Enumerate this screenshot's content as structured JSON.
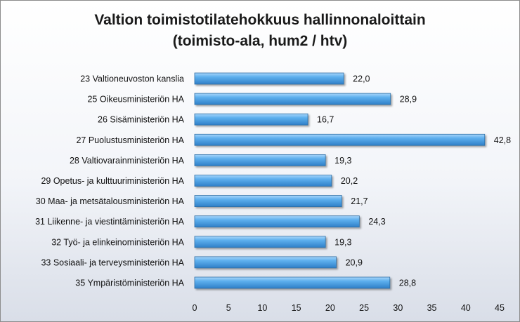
{
  "chart_data": {
    "type": "bar",
    "orientation": "horizontal",
    "title": "Valtion toimistotilatehokkuus hallinnonaloittain",
    "subtitle": "(toimisto-ala, hum2 / htv)",
    "categories": [
      "23 Valtioneuvoston kanslia",
      "25 Oikeusministeriön HA",
      "26 Sisäministeriön HA",
      "27 Puolustusministeriön HA",
      "28 Valtiovarainministeriön HA",
      "29 Opetus- ja kulttuuriministeriön HA",
      "30 Maa- ja metsätalousministeriön HA",
      "31 Liikenne- ja viestintäministeriön HA",
      "32 Työ- ja elinkeinoministeriön HA",
      "33 Sosiaali- ja terveysministeriön HA",
      "35 Ympäristöministeriön HA"
    ],
    "values": [
      22.0,
      28.9,
      16.7,
      42.8,
      19.3,
      20.2,
      21.7,
      24.3,
      19.3,
      20.9,
      28.8
    ],
    "value_labels": [
      "22,0",
      "28,9",
      "16,7",
      "42,8",
      "19,3",
      "20,2",
      "21,7",
      "24,3",
      "19,3",
      "20,9",
      "28,8"
    ],
    "xlim": [
      0,
      45
    ],
    "xticks": [
      0,
      5,
      10,
      15,
      20,
      25,
      30,
      35,
      40,
      45
    ],
    "grid": false,
    "legend": "none",
    "bar_color": "#4a9fe0",
    "bar_edge_color": "#2f6fa6"
  }
}
